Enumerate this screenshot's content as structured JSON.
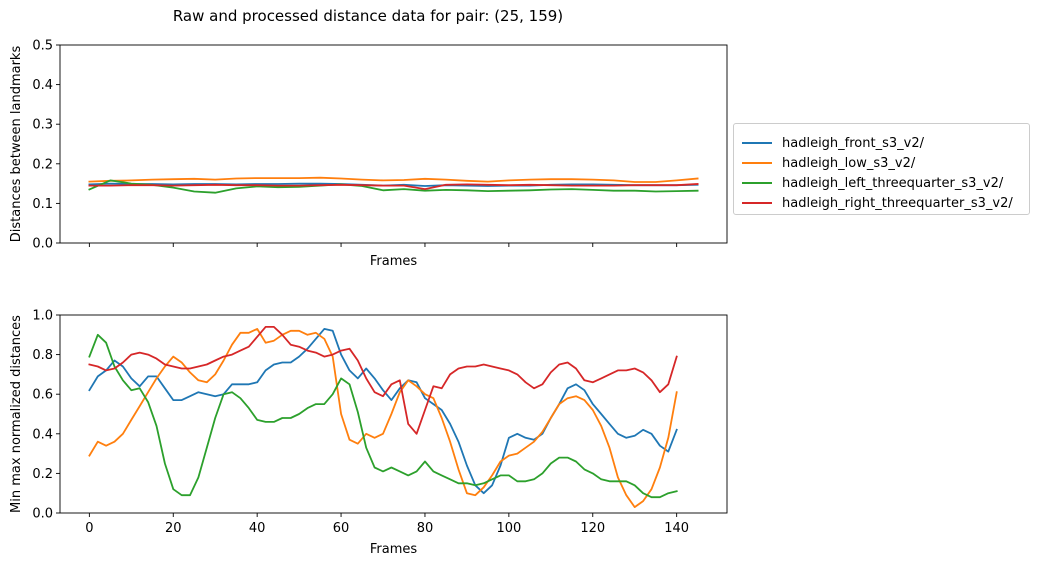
{
  "figure_title": "Raw and processed distance data for pair: (25, 159)",
  "colors": {
    "front": "#1f77b4",
    "low": "#ff7f0e",
    "left": "#2ca02c",
    "right": "#d62728"
  },
  "legend": {
    "placement": "center-right",
    "items": [
      "hadleigh_front_s3_v2/",
      "hadleigh_low_s3_v2/",
      "hadleigh_left_threequarter_s3_v2/",
      "hadleigh_right_threequarter_s3_v2/"
    ]
  },
  "chart_data": [
    {
      "type": "line",
      "title": "",
      "xlabel": "Frames",
      "ylabel": "Distances between landmarks",
      "xlim": [
        -7,
        152
      ],
      "ylim": [
        0,
        0.5
      ],
      "yticks": [
        "0.0",
        "0.1",
        "0.2",
        "0.3",
        "0.4",
        "0.5"
      ],
      "xtick_labels_visible": false,
      "grid": false,
      "x": [
        0,
        5,
        10,
        15,
        20,
        25,
        30,
        35,
        40,
        45,
        50,
        55,
        60,
        65,
        70,
        75,
        80,
        85,
        90,
        95,
        100,
        105,
        110,
        115,
        120,
        125,
        130,
        135,
        140,
        145
      ],
      "series": [
        {
          "name": "hadleigh_front_s3_v2/",
          "color": "#1f77b4",
          "values": [
            0.148,
            0.15,
            0.149,
            0.149,
            0.148,
            0.149,
            0.149,
            0.148,
            0.149,
            0.149,
            0.15,
            0.15,
            0.149,
            0.147,
            0.145,
            0.147,
            0.144,
            0.146,
            0.145,
            0.144,
            0.145,
            0.145,
            0.147,
            0.148,
            0.148,
            0.147,
            0.146,
            0.146,
            0.146,
            0.147
          ]
        },
        {
          "name": "hadleigh_low_s3_v2/",
          "color": "#ff7f0e",
          "values": [
            0.155,
            0.157,
            0.158,
            0.16,
            0.161,
            0.162,
            0.16,
            0.163,
            0.164,
            0.164,
            0.164,
            0.165,
            0.163,
            0.16,
            0.158,
            0.159,
            0.162,
            0.16,
            0.157,
            0.155,
            0.158,
            0.16,
            0.161,
            0.161,
            0.16,
            0.158,
            0.154,
            0.154,
            0.158,
            0.163
          ]
        },
        {
          "name": "hadleigh_left_threequarter_s3_v2/",
          "color": "#2ca02c",
          "values": [
            0.135,
            0.158,
            0.15,
            0.147,
            0.14,
            0.13,
            0.127,
            0.138,
            0.143,
            0.141,
            0.142,
            0.145,
            0.148,
            0.144,
            0.133,
            0.136,
            0.132,
            0.134,
            0.133,
            0.131,
            0.132,
            0.133,
            0.135,
            0.136,
            0.134,
            0.132,
            0.132,
            0.13,
            0.131,
            0.132
          ]
        },
        {
          "name": "hadleigh_right_threequarter_s3_v2/",
          "color": "#d62728",
          "values": [
            0.145,
            0.145,
            0.146,
            0.146,
            0.145,
            0.146,
            0.147,
            0.146,
            0.146,
            0.145,
            0.145,
            0.146,
            0.147,
            0.146,
            0.145,
            0.145,
            0.136,
            0.147,
            0.148,
            0.147,
            0.146,
            0.147,
            0.146,
            0.145,
            0.145,
            0.145,
            0.146,
            0.146,
            0.146,
            0.149
          ]
        }
      ]
    },
    {
      "type": "line",
      "title": "",
      "xlabel": "Frames",
      "ylabel": "Min max normalized distances",
      "xlim": [
        -7,
        152
      ],
      "ylim": [
        0,
        1.0
      ],
      "yticks": [
        "0.0",
        "0.2",
        "0.4",
        "0.6",
        "0.8",
        "1.0"
      ],
      "xticks": [
        "0",
        "20",
        "40",
        "60",
        "80",
        "100",
        "120",
        "140"
      ],
      "grid": false,
      "x": [
        0,
        2,
        4,
        6,
        8,
        10,
        12,
        14,
        16,
        18,
        20,
        22,
        24,
        26,
        28,
        30,
        32,
        34,
        36,
        38,
        40,
        42,
        44,
        46,
        48,
        50,
        52,
        54,
        56,
        58,
        60,
        62,
        64,
        66,
        68,
        70,
        72,
        74,
        76,
        78,
        80,
        82,
        84,
        86,
        88,
        90,
        92,
        94,
        96,
        98,
        100,
        102,
        104,
        106,
        108,
        110,
        112,
        114,
        116,
        118,
        120,
        122,
        124,
        126,
        128,
        130,
        132,
        134,
        136,
        138,
        140
      ],
      "series": [
        {
          "name": "hadleigh_front_s3_v2/",
          "color": "#1f77b4",
          "values": [
            0.62,
            0.69,
            0.72,
            0.77,
            0.74,
            0.68,
            0.64,
            0.69,
            0.69,
            0.63,
            0.57,
            0.57,
            0.59,
            0.61,
            0.6,
            0.59,
            0.6,
            0.65,
            0.65,
            0.65,
            0.66,
            0.72,
            0.75,
            0.76,
            0.76,
            0.79,
            0.83,
            0.88,
            0.93,
            0.92,
            0.8,
            0.72,
            0.68,
            0.73,
            0.68,
            0.62,
            0.57,
            0.63,
            0.67,
            0.66,
            0.58,
            0.55,
            0.52,
            0.45,
            0.36,
            0.24,
            0.14,
            0.1,
            0.14,
            0.24,
            0.38,
            0.4,
            0.38,
            0.37,
            0.4,
            0.48,
            0.55,
            0.63,
            0.65,
            0.62,
            0.55,
            0.5,
            0.45,
            0.4,
            0.38,
            0.39,
            0.42,
            0.4,
            0.34,
            0.31,
            0.42
          ]
        },
        {
          "name": "hadleigh_low_s3_v2/",
          "color": "#ff7f0e",
          "values": [
            0.29,
            0.36,
            0.34,
            0.36,
            0.4,
            0.47,
            0.54,
            0.61,
            0.68,
            0.74,
            0.79,
            0.76,
            0.71,
            0.67,
            0.66,
            0.7,
            0.77,
            0.85,
            0.91,
            0.91,
            0.93,
            0.86,
            0.87,
            0.9,
            0.92,
            0.92,
            0.9,
            0.91,
            0.88,
            0.79,
            0.5,
            0.37,
            0.35,
            0.4,
            0.38,
            0.4,
            0.5,
            0.61,
            0.67,
            0.64,
            0.6,
            0.58,
            0.48,
            0.36,
            0.22,
            0.1,
            0.09,
            0.13,
            0.19,
            0.26,
            0.29,
            0.3,
            0.33,
            0.36,
            0.41,
            0.48,
            0.55,
            0.58,
            0.59,
            0.57,
            0.52,
            0.44,
            0.33,
            0.18,
            0.09,
            0.03,
            0.06,
            0.12,
            0.23,
            0.38,
            0.61
          ]
        },
        {
          "name": "hadleigh_left_threequarter_s3_v2/",
          "color": "#2ca02c",
          "values": [
            0.79,
            0.9,
            0.86,
            0.74,
            0.67,
            0.62,
            0.63,
            0.56,
            0.44,
            0.25,
            0.12,
            0.09,
            0.09,
            0.18,
            0.33,
            0.48,
            0.6,
            0.61,
            0.58,
            0.53,
            0.47,
            0.46,
            0.46,
            0.48,
            0.48,
            0.5,
            0.53,
            0.55,
            0.55,
            0.6,
            0.68,
            0.65,
            0.51,
            0.33,
            0.23,
            0.21,
            0.23,
            0.21,
            0.19,
            0.21,
            0.26,
            0.21,
            0.19,
            0.17,
            0.15,
            0.15,
            0.14,
            0.15,
            0.17,
            0.19,
            0.19,
            0.16,
            0.16,
            0.17,
            0.2,
            0.25,
            0.28,
            0.28,
            0.26,
            0.22,
            0.2,
            0.17,
            0.16,
            0.16,
            0.16,
            0.14,
            0.1,
            0.08,
            0.08,
            0.1,
            0.11
          ]
        },
        {
          "name": "hadleigh_right_threequarter_s3_v2/",
          "color": "#d62728",
          "values": [
            0.75,
            0.74,
            0.72,
            0.73,
            0.76,
            0.8,
            0.81,
            0.8,
            0.78,
            0.75,
            0.74,
            0.73,
            0.73,
            0.74,
            0.75,
            0.77,
            0.79,
            0.8,
            0.82,
            0.84,
            0.89,
            0.94,
            0.94,
            0.9,
            0.85,
            0.84,
            0.82,
            0.81,
            0.79,
            0.8,
            0.82,
            0.83,
            0.77,
            0.68,
            0.61,
            0.59,
            0.65,
            0.67,
            0.45,
            0.4,
            0.52,
            0.64,
            0.63,
            0.7,
            0.73,
            0.74,
            0.74,
            0.75,
            0.74,
            0.73,
            0.72,
            0.7,
            0.66,
            0.63,
            0.65,
            0.71,
            0.75,
            0.76,
            0.73,
            0.67,
            0.66,
            0.68,
            0.7,
            0.72,
            0.72,
            0.73,
            0.71,
            0.67,
            0.61,
            0.65,
            0.79
          ]
        }
      ]
    }
  ]
}
